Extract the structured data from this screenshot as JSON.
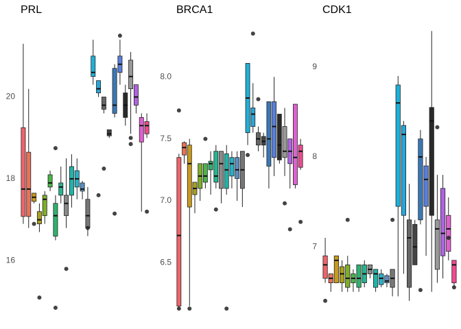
{
  "chart_data": [
    {
      "type": "box",
      "title": "PRL",
      "ylim": [
        14.8,
        21.7
      ],
      "yticks": [
        16,
        18,
        20
      ],
      "boxes": [
        {
          "color": "#f0636b",
          "low": 16.9,
          "q1": 17.08,
          "median": 17.75,
          "q3": 19.25,
          "high": 21.3,
          "outliers": []
        },
        {
          "color": "#e8735a",
          "low": 16.8,
          "q1": 17.08,
          "median": 17.75,
          "q3": 18.65,
          "high": 20.2,
          "outliers": []
        },
        {
          "color": "#c89a1e",
          "low": 17.4,
          "q1": 17.45,
          "median": 17.55,
          "q3": 17.65,
          "high": 17.65,
          "outliers": [
            16.9
          ]
        },
        {
          "color": "#a8a020",
          "low": 16.7,
          "q1": 16.9,
          "median": 17.0,
          "q3": 17.2,
          "high": 17.4,
          "outliers": [
            15.1
          ]
        },
        {
          "color": "#7fae2a",
          "low": 16.9,
          "q1": 17.1,
          "median": 17.5,
          "q3": 17.6,
          "high": 17.7,
          "outliers": []
        },
        {
          "color": "#4bb44a",
          "low": 17.7,
          "q1": 17.8,
          "median": 17.9,
          "q3": 18.1,
          "high": 18.2,
          "outliers": []
        },
        {
          "color": "#2fb26e",
          "low": 16.5,
          "q1": 16.6,
          "median": 17.1,
          "q3": 17.4,
          "high": 17.6,
          "outliers": [
            14.85,
            18.75
          ]
        },
        {
          "color": "#27b590",
          "low": 17.4,
          "q1": 17.6,
          "median": 17.8,
          "q3": 17.9,
          "high": 18.3,
          "outliers": []
        },
        {
          "color": "#8a8a8a",
          "low": 16.8,
          "q1": 17.1,
          "median": 17.4,
          "q3": 17.6,
          "high": 18.5,
          "outliers": [
            15.8
          ]
        },
        {
          "color": "#22b3a8",
          "low": 17.3,
          "q1": 17.6,
          "median": 18.0,
          "q3": 18.3,
          "high": 18.6,
          "outliers": []
        },
        {
          "color": "#2ab0c8",
          "low": 17.5,
          "q1": 17.8,
          "median": 18.0,
          "q3": 18.2,
          "high": 18.5,
          "outliers": []
        },
        {
          "color": "#5a8fc0",
          "low": 17.5,
          "q1": 17.7,
          "median": 17.75,
          "q3": 17.9,
          "high": 17.95,
          "outliers": []
        },
        {
          "color": "#777777",
          "low": 16.6,
          "q1": 16.8,
          "median": 17.1,
          "q3": 17.5,
          "high": 17.8,
          "outliers": [
            16.8
          ]
        },
        {
          "color": "#1fb0d8",
          "low": 20.3,
          "q1": 20.5,
          "median": 20.6,
          "q3": 21.0,
          "high": 21.4,
          "outliers": []
        },
        {
          "color": "#2aa6d8",
          "low": 20.0,
          "q1": 20.1,
          "median": 20.2,
          "q3": 20.4,
          "high": 20.4,
          "outliers": [
            17.6
          ]
        },
        {
          "color": "#666666",
          "low": 19.6,
          "q1": 19.7,
          "median": 19.8,
          "q3": 20.0,
          "high": 20.0,
          "outliers": [
            18.25
          ]
        },
        {
          "color": "#444444",
          "low": 19.0,
          "q1": 19.05,
          "median": 19.1,
          "q3": 19.2,
          "high": 19.2,
          "outliers": []
        },
        {
          "color": "#3a78b8",
          "low": 19.5,
          "q1": 19.6,
          "median": 19.8,
          "q3": 20.7,
          "high": 20.8,
          "outliers": [
            17.15
          ]
        },
        {
          "color": "#5a7fd8",
          "low": 20.3,
          "q1": 20.6,
          "median": 20.8,
          "q3": 21.0,
          "high": 21.4,
          "outliers": [
            21.5
          ]
        },
        {
          "color": "#2a2a2a",
          "low": 19.3,
          "q1": 19.5,
          "median": 19.8,
          "q3": 20.1,
          "high": 20.3,
          "outliers": []
        },
        {
          "color": "#999999",
          "low": 19.1,
          "q1": 20.2,
          "median": 20.5,
          "q3": 20.9,
          "high": 21.1,
          "outliers": [
            18.85,
            19.0
          ]
        },
        {
          "color": "#b064e0",
          "low": 19.6,
          "q1": 19.8,
          "median": 20.0,
          "q3": 20.3,
          "high": 20.3,
          "outliers": []
        },
        {
          "color": "#e060d0",
          "low": 17.2,
          "q1": 18.9,
          "median": 19.3,
          "q3": 19.5,
          "high": 19.6,
          "outliers": []
        },
        {
          "color": "#f04a90",
          "low": 19.0,
          "q1": 19.1,
          "median": 19.3,
          "q3": 19.4,
          "high": 19.6,
          "outliers": [
            17.2
          ]
        }
      ]
    },
    {
      "type": "box",
      "title": "BRCA1",
      "ylim": [
        6.12,
        8.4
      ],
      "yticks": [
        {
          "value": 6.5,
          "label": "6.5"
        },
        {
          "value": 7,
          "label": "7.0"
        },
        {
          "value": 7.5,
          "label": "7.5"
        },
        {
          "value": 8,
          "label": "8.0"
        }
      ],
      "boxes": [
        {
          "color": "#f0636b",
          "low": 6.13,
          "q1": 6.15,
          "median": 6.72,
          "q3": 7.35,
          "high": 7.38,
          "outliers": [
            7.73,
            6.13
          ]
        },
        {
          "color": "#e8735a",
          "low": 7.3,
          "q1": 7.37,
          "median": 7.43,
          "q3": 7.47,
          "high": 7.48,
          "outliers": []
        },
        {
          "color": "#c89a1e",
          "low": 6.15,
          "q1": 6.95,
          "median": 7.3,
          "q3": 7.45,
          "high": 7.5,
          "outliers": [
            6.13
          ]
        },
        {
          "color": "#a8a020",
          "low": 6.9,
          "q1": 7.05,
          "median": 7.1,
          "q3": 7.15,
          "high": 7.15,
          "outliers": []
        },
        {
          "color": "#7fae2a",
          "low": 7.0,
          "q1": 7.1,
          "median": 7.2,
          "q3": 7.3,
          "high": 7.3,
          "outliers": []
        },
        {
          "color": "#4bb44a",
          "low": 7.1,
          "q1": 7.15,
          "median": 7.2,
          "q3": 7.3,
          "high": 7.3,
          "outliers": [
            7.5
          ]
        },
        {
          "color": "#2fb26e",
          "low": 7.05,
          "q1": 7.25,
          "median": 7.3,
          "q3": 7.32,
          "high": 7.4,
          "outliers": []
        },
        {
          "color": "#27b590",
          "low": 7.1,
          "q1": 7.15,
          "median": 7.2,
          "q3": 7.4,
          "high": 7.45,
          "outliers": [
            6.93
          ]
        },
        {
          "color": "#8a8a8a",
          "low": 6.98,
          "q1": 7.1,
          "median": 7.3,
          "q3": 7.4,
          "high": 7.4,
          "outliers": []
        },
        {
          "color": "#22b3a8",
          "low": 7.05,
          "q1": 7.1,
          "median": 7.25,
          "q3": 7.38,
          "high": 7.45,
          "outliers": [
            6.13
          ]
        },
        {
          "color": "#2ab0c8",
          "low": 7.1,
          "q1": 7.2,
          "median": 7.3,
          "q3": 7.35,
          "high": 7.4,
          "outliers": []
        },
        {
          "color": "#5a8fc0",
          "low": 7.0,
          "q1": 7.18,
          "median": 7.25,
          "q3": 7.35,
          "high": 7.4,
          "outliers": []
        },
        {
          "color": "#777777",
          "low": 6.95,
          "q1": 7.1,
          "median": 7.25,
          "q3": 7.4,
          "high": 7.4,
          "outliers": []
        },
        {
          "color": "#1fb0d8",
          "low": 7.45,
          "q1": 7.55,
          "median": 7.83,
          "q3": 8.11,
          "high": 8.11,
          "outliers": [
            7.37
          ]
        },
        {
          "color": "#2aa6d8",
          "low": 7.55,
          "q1": 7.6,
          "median": 7.7,
          "q3": 7.75,
          "high": 7.95,
          "outliers": [
            8.35
          ]
        },
        {
          "color": "#666666",
          "low": 7.4,
          "q1": 7.45,
          "median": 7.5,
          "q3": 7.55,
          "high": 7.6,
          "outliers": [
            7.82
          ]
        },
        {
          "color": "#444444",
          "low": 7.35,
          "q1": 7.45,
          "median": 7.48,
          "q3": 7.52,
          "high": 7.55,
          "outliers": []
        },
        {
          "color": "#3a78b8",
          "low": 7.1,
          "q1": 7.28,
          "median": 7.5,
          "q3": 7.8,
          "high": 7.8,
          "outliers": []
        },
        {
          "color": "#5a7fd8",
          "low": 7.2,
          "q1": 7.35,
          "median": 7.6,
          "q3": 7.8,
          "high": 8.0,
          "outliers": []
        },
        {
          "color": "#2a2a2a",
          "low": 7.3,
          "q1": 7.33,
          "median": 7.45,
          "q3": 7.7,
          "high": 7.7,
          "outliers": []
        },
        {
          "color": "#999999",
          "low": 7.2,
          "q1": 7.35,
          "median": 7.4,
          "q3": 7.6,
          "high": 7.75,
          "outliers": [
            6.98
          ]
        },
        {
          "color": "#b064e0",
          "low": 7.1,
          "q1": 7.3,
          "median": 7.4,
          "q3": 7.5,
          "high": 7.5,
          "outliers": [
            6.77
          ]
        },
        {
          "color": "#e060d0",
          "low": 7.1,
          "q1": 7.13,
          "median": 7.35,
          "q3": 7.78,
          "high": 7.78,
          "outliers": []
        },
        {
          "color": "#f04a90",
          "low": 7.25,
          "q1": 7.27,
          "median": 7.4,
          "q3": 7.45,
          "high": 7.5,
          "outliers": [
            6.83
          ]
        }
      ]
    },
    {
      "type": "box",
      "title": "CDK1",
      "ylim": [
        6.3,
        9.44
      ],
      "yticks": [
        7,
        8,
        9
      ],
      "boxes": [
        {
          "color": "#f0636b",
          "low": 6.6,
          "q1": 6.65,
          "median": 6.8,
          "q3": 6.9,
          "high": 7.1,
          "outliers": [
            6.4
          ]
        },
        {
          "color": "#e8735a",
          "low": 6.5,
          "q1": 6.6,
          "median": 6.65,
          "q3": 6.7,
          "high": 6.7,
          "outliers": []
        },
        {
          "color": "#c89a1e",
          "low": 6.6,
          "q1": 6.6,
          "median": 6.85,
          "q3": 6.9,
          "high": 6.9,
          "outliers": []
        },
        {
          "color": "#a8a020",
          "low": 6.5,
          "q1": 6.6,
          "median": 6.7,
          "q3": 6.78,
          "high": 6.85,
          "outliers": []
        },
        {
          "color": "#7fae2a",
          "low": 6.5,
          "q1": 6.55,
          "median": 6.65,
          "q3": 6.8,
          "high": 6.9,
          "outliers": [
            7.3
          ]
        },
        {
          "color": "#4bb44a",
          "low": 6.5,
          "q1": 6.6,
          "median": 6.65,
          "q3": 6.7,
          "high": 6.75,
          "outliers": []
        },
        {
          "color": "#2fb26e",
          "low": 6.5,
          "q1": 6.55,
          "median": 6.65,
          "q3": 6.8,
          "high": 6.8,
          "outliers": []
        },
        {
          "color": "#27b590",
          "low": 6.55,
          "q1": 6.6,
          "median": 6.7,
          "q3": 6.8,
          "high": 6.85,
          "outliers": []
        },
        {
          "color": "#8a8a8a",
          "low": 6.65,
          "q1": 6.7,
          "median": 6.75,
          "q3": 6.8,
          "high": 6.8,
          "outliers": []
        },
        {
          "color": "#22b3a8",
          "low": 6.5,
          "q1": 6.55,
          "median": 6.7,
          "q3": 6.75,
          "high": 6.75,
          "outliers": []
        },
        {
          "color": "#2ab0c8",
          "low": 6.55,
          "q1": 6.58,
          "median": 6.65,
          "q3": 6.7,
          "high": 6.75,
          "outliers": []
        },
        {
          "color": "#5a8fc0",
          "low": 6.55,
          "q1": 6.6,
          "median": 6.62,
          "q3": 6.68,
          "high": 6.7,
          "outliers": []
        },
        {
          "color": "#777777",
          "low": 6.45,
          "q1": 6.55,
          "median": 6.65,
          "q3": 6.75,
          "high": 6.75,
          "outliers": [
            7.3
          ]
        },
        {
          "color": "#1fb0d8",
          "low": 6.45,
          "q1": 7.45,
          "median": 8.6,
          "q3": 8.8,
          "high": 8.9,
          "outliers": []
        },
        {
          "color": "#2aa6d8",
          "low": 6.7,
          "q1": 7.35,
          "median": 8.25,
          "q3": 8.35,
          "high": 8.4,
          "outliers": []
        },
        {
          "color": "#666666",
          "low": 6.4,
          "q1": 6.55,
          "median": 7.1,
          "q3": 7.3,
          "high": 7.7,
          "outliers": []
        },
        {
          "color": "#444444",
          "low": 6.8,
          "q1": 6.8,
          "median": 7.0,
          "q3": 7.25,
          "high": 7.3,
          "outliers": []
        },
        {
          "color": "#3a78b8",
          "low": 7.25,
          "q1": 7.3,
          "median": 8.0,
          "q3": 8.2,
          "high": 8.3,
          "outliers": [
            6.52
          ]
        },
        {
          "color": "#5a7fd8",
          "low": 6.9,
          "q1": 7.45,
          "median": 7.75,
          "q3": 7.9,
          "high": 8.0,
          "outliers": []
        },
        {
          "color": "#2a2a2a",
          "low": 6.5,
          "q1": 7.35,
          "median": 8.4,
          "q3": 8.55,
          "high": 9.4,
          "outliers": []
        },
        {
          "color": "#999999",
          "low": 6.6,
          "q1": 6.75,
          "median": 7.2,
          "q3": 7.3,
          "high": 7.8,
          "outliers": [
            8.33
          ]
        },
        {
          "color": "#b064e0",
          "low": 6.65,
          "q1": 6.9,
          "median": 7.15,
          "q3": 7.65,
          "high": 7.8,
          "outliers": []
        },
        {
          "color": "#e060d0",
          "low": 6.85,
          "q1": 6.95,
          "median": 7.2,
          "q3": 7.35,
          "high": 7.55,
          "outliers": [
            7.1
          ]
        },
        {
          "color": "#f04a90",
          "low": 6.55,
          "q1": 6.6,
          "median": 6.8,
          "q3": 6.85,
          "high": 6.85,
          "outliers": [
            6.55
          ]
        }
      ]
    }
  ]
}
